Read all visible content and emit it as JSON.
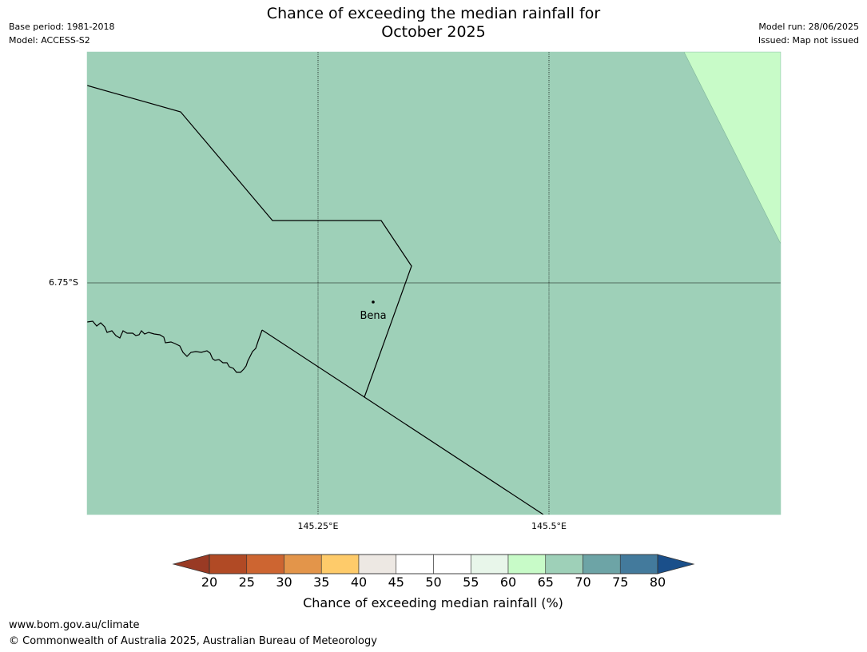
{
  "header": {
    "title_line1": "Chance of exceeding the median rainfall for",
    "title_line2": "October 2025",
    "base_period": "Base period: 1981-2018",
    "model": "Model: ACCESS-S2",
    "model_run": "Model run: 28/06/2025",
    "issued": "Issued: Map not issued"
  },
  "map": {
    "lat_label": "6.75°S",
    "lon_labels": [
      "145.25°E",
      "145.5°E"
    ],
    "place": "Bena",
    "colors": {
      "region_65_70": "#9ed0b8",
      "region_60_65": "#c8fbc8",
      "boundary": "#000000",
      "gridline": "#000000"
    }
  },
  "colorbar": {
    "label": "Chance of exceeding median rainfall (%)",
    "ticks": [
      "20",
      "25",
      "30",
      "35",
      "40",
      "45",
      "50",
      "55",
      "60",
      "65",
      "70",
      "75",
      "80"
    ],
    "under_color": "#993a24",
    "over_color": "#1a4f8a",
    "colors": [
      "#b14a25",
      "#cd6531",
      "#e3954a",
      "#fecb6a",
      "#ede8e3",
      "#ffffff",
      "#ffffff",
      "#e8f6ea",
      "#c8fbc8",
      "#9ed0b8",
      "#6da4a6",
      "#437a9c"
    ]
  },
  "footer": {
    "url": "www.bom.gov.au/climate",
    "copyright": "© Commonwealth of Australia 2025, Australian Bureau of Meteorology"
  }
}
